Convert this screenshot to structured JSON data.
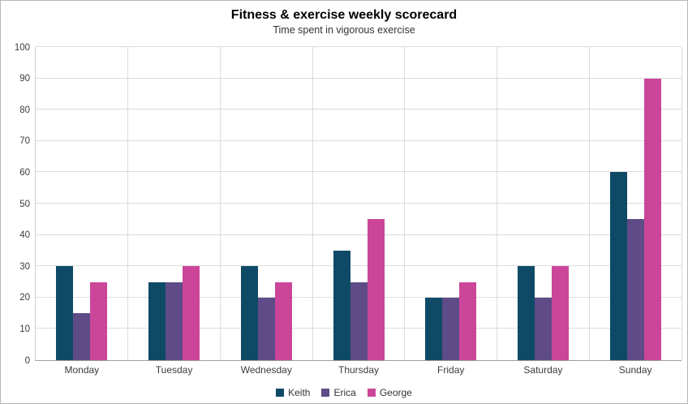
{
  "chart": {
    "title": "Fitness & exercise weekly scorecard",
    "subtitle": "Time spent in vigorous exercise"
  },
  "chart_data": {
    "type": "bar",
    "title": "Fitness & exercise weekly scorecard",
    "subtitle": "Time spent in vigorous exercise",
    "categories": [
      "Monday",
      "Tuesday",
      "Wednesday",
      "Thursday",
      "Friday",
      "Saturday",
      "Sunday"
    ],
    "series": [
      {
        "name": "Keith",
        "color": "#0e4a66",
        "values": [
          30,
          25,
          30,
          35,
          20,
          30,
          60
        ]
      },
      {
        "name": "Erica",
        "color": "#5e4b87",
        "values": [
          15,
          25,
          20,
          25,
          20,
          20,
          45
        ]
      },
      {
        "name": "George",
        "color": "#cb4699",
        "values": [
          25,
          30,
          25,
          45,
          25,
          30,
          90
        ]
      }
    ],
    "xlabel": "",
    "ylabel": "",
    "ylim": [
      0,
      100
    ],
    "ytick_step": 10,
    "grid": true,
    "legend_position": "bottom"
  }
}
